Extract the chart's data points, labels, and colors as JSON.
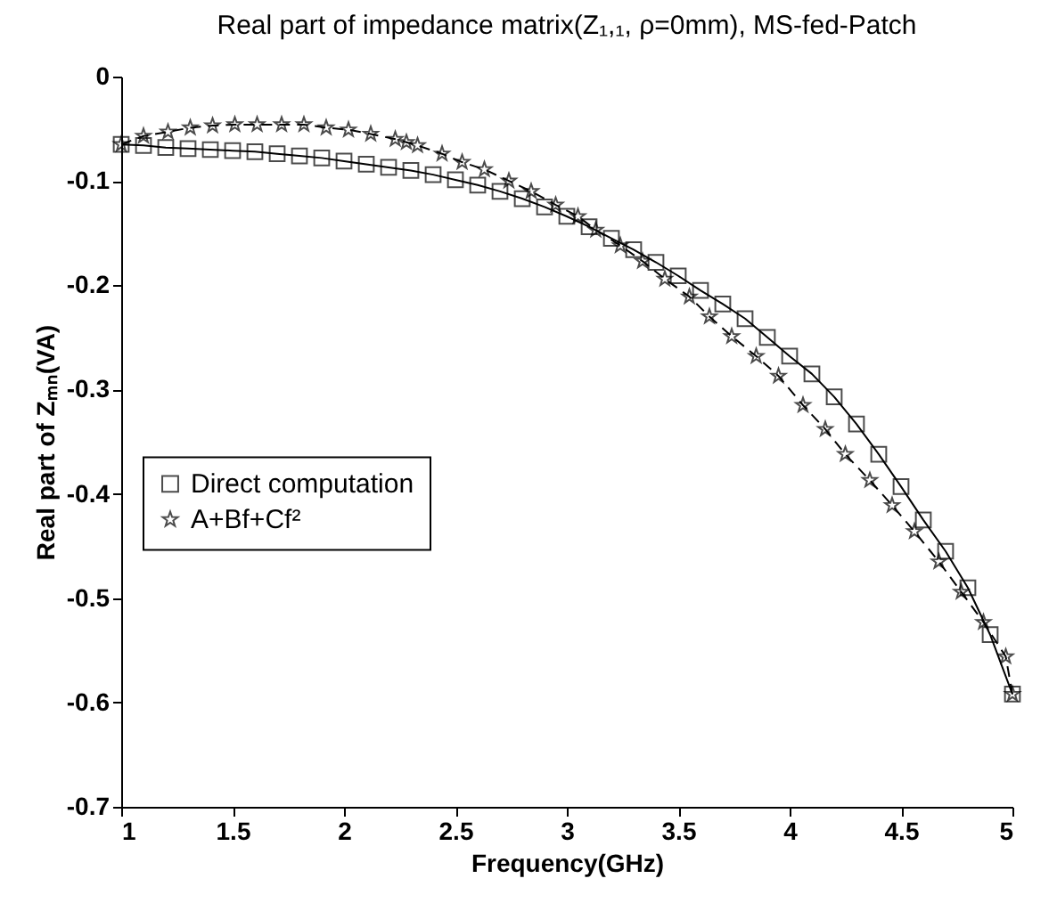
{
  "chart_data": {
    "type": "line",
    "title": "Real part of impedance matrix(Z₁,₁, ρ=0mm), MS-fed-Patch",
    "xlabel": "Frequency(GHz)",
    "ylabel": "Real part of Zₘₙ(VA)",
    "xlim": [
      1,
      5
    ],
    "ylim": [
      -0.7,
      0
    ],
    "xticks": [
      1,
      1.5,
      2,
      2.5,
      3,
      3.5,
      4,
      4.5,
      5
    ],
    "yticks": [
      -0.7,
      -0.6,
      -0.5,
      -0.4,
      -0.3,
      -0.2,
      -0.1,
      0
    ],
    "grid": false,
    "legend": "left",
    "series": [
      {
        "name": "Direct computation",
        "color": "#000000",
        "marker": "square",
        "line_style": "solid",
        "x": [
          1.0,
          1.1,
          1.2,
          1.3,
          1.4,
          1.5,
          1.6,
          1.7,
          1.8,
          1.9,
          2.0,
          2.1,
          2.2,
          2.3,
          2.4,
          2.5,
          2.6,
          2.7,
          2.8,
          2.9,
          3.0,
          3.1,
          3.2,
          3.3,
          3.4,
          3.5,
          3.6,
          3.7,
          3.8,
          3.9,
          4.0,
          4.1,
          4.2,
          4.3,
          4.4,
          4.5,
          4.6,
          4.7,
          4.8,
          4.9,
          5.0
        ],
        "values": [
          -0.065,
          -0.066,
          -0.068,
          -0.069,
          -0.07,
          -0.071,
          -0.072,
          -0.074,
          -0.076,
          -0.078,
          -0.081,
          -0.084,
          -0.087,
          -0.09,
          -0.094,
          -0.099,
          -0.104,
          -0.11,
          -0.117,
          -0.125,
          -0.134,
          -0.144,
          -0.155,
          -0.166,
          -0.178,
          -0.191,
          -0.205,
          -0.218,
          -0.232,
          -0.25,
          -0.268,
          -0.285,
          -0.307,
          -0.333,
          -0.362,
          -0.393,
          -0.425,
          -0.455,
          -0.49,
          -0.535,
          -0.592
        ]
      },
      {
        "name": "A+Bf+Cf²",
        "color": "#000000",
        "marker": "star",
        "line_style": "dashed",
        "x": [
          1.0,
          1.1,
          1.21,
          1.31,
          1.41,
          1.51,
          1.61,
          1.72,
          1.82,
          1.92,
          2.02,
          2.12,
          2.23,
          2.28,
          2.33,
          2.44,
          2.53,
          2.63,
          2.74,
          2.84,
          2.95,
          3.05,
          3.13,
          3.24,
          3.34,
          3.44,
          3.55,
          3.64,
          3.74,
          3.85,
          3.95,
          4.06,
          4.16,
          4.25,
          4.36,
          4.46,
          4.56,
          4.67,
          4.77,
          4.87,
          4.97,
          5.0
        ],
        "values": [
          -0.065,
          -0.057,
          -0.053,
          -0.049,
          -0.047,
          -0.046,
          -0.046,
          -0.046,
          -0.046,
          -0.049,
          -0.051,
          -0.055,
          -0.06,
          -0.063,
          -0.066,
          -0.074,
          -0.082,
          -0.089,
          -0.1,
          -0.11,
          -0.123,
          -0.134,
          -0.147,
          -0.162,
          -0.177,
          -0.194,
          -0.211,
          -0.23,
          -0.249,
          -0.268,
          -0.287,
          -0.315,
          -0.338,
          -0.362,
          -0.387,
          -0.411,
          -0.436,
          -0.465,
          -0.494,
          -0.523,
          -0.556,
          -0.592
        ]
      }
    ]
  }
}
